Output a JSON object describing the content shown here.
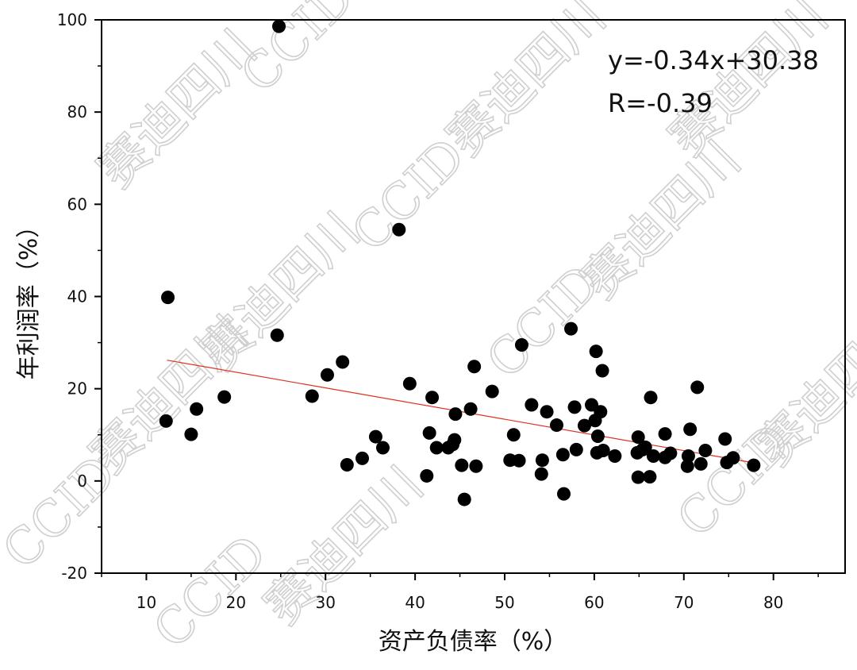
{
  "chart_data": {
    "type": "scatter",
    "xlabel": "资产负债率（%）",
    "ylabel": "年利润率（%）",
    "xlim": [
      5,
      88
    ],
    "ylim": [
      -20,
      100
    ],
    "x_ticks": [
      10,
      20,
      30,
      40,
      50,
      60,
      70,
      80
    ],
    "y_ticks": [
      -20,
      0,
      20,
      40,
      60,
      80,
      100
    ],
    "grid": false,
    "marker_color": "#000000",
    "trendline": {
      "color": "#e03020",
      "x_start": 12.3,
      "x_end": 77.8
    },
    "annotations": [
      "y=-0.34x+30.38",
      "R=-0.39"
    ],
    "watermarks": [
      "赛迪四川",
      "CCID"
    ],
    "points": [
      {
        "x": 24.8,
        "y": 98.6
      },
      {
        "x": 38.2,
        "y": 54.5
      },
      {
        "x": 12.4,
        "y": 39.8
      },
      {
        "x": 24.6,
        "y": 31.6
      },
      {
        "x": 12.2,
        "y": 13.0
      },
      {
        "x": 15.0,
        "y": 10.1
      },
      {
        "x": 15.6,
        "y": 15.6
      },
      {
        "x": 18.7,
        "y": 18.2
      },
      {
        "x": 28.5,
        "y": 18.4
      },
      {
        "x": 30.2,
        "y": 23.0
      },
      {
        "x": 31.9,
        "y": 25.8
      },
      {
        "x": 32.4,
        "y": 3.5
      },
      {
        "x": 34.1,
        "y": 4.9
      },
      {
        "x": 35.6,
        "y": 9.6
      },
      {
        "x": 36.4,
        "y": 7.2
      },
      {
        "x": 39.4,
        "y": 21.1
      },
      {
        "x": 41.3,
        "y": 1.1
      },
      {
        "x": 41.6,
        "y": 10.4
      },
      {
        "x": 41.9,
        "y": 18.1
      },
      {
        "x": 42.4,
        "y": 7.2
      },
      {
        "x": 43.7,
        "y": 7.2
      },
      {
        "x": 44.2,
        "y": 7.9
      },
      {
        "x": 44.4,
        "y": 8.9
      },
      {
        "x": 44.5,
        "y": 14.5
      },
      {
        "x": 45.2,
        "y": 3.4
      },
      {
        "x": 45.5,
        "y": -4.0
      },
      {
        "x": 46.2,
        "y": 15.6
      },
      {
        "x": 46.6,
        "y": 24.8
      },
      {
        "x": 46.8,
        "y": 3.2
      },
      {
        "x": 48.6,
        "y": 19.4
      },
      {
        "x": 50.6,
        "y": 4.5
      },
      {
        "x": 51.0,
        "y": 10.0
      },
      {
        "x": 51.6,
        "y": 4.4
      },
      {
        "x": 51.9,
        "y": 29.5
      },
      {
        "x": 53.0,
        "y": 16.5
      },
      {
        "x": 54.1,
        "y": 1.5
      },
      {
        "x": 54.2,
        "y": 4.5
      },
      {
        "x": 54.7,
        "y": 15.0
      },
      {
        "x": 55.8,
        "y": 12.1
      },
      {
        "x": 56.5,
        "y": 5.7
      },
      {
        "x": 56.6,
        "y": -2.8
      },
      {
        "x": 57.4,
        "y": 33.0
      },
      {
        "x": 57.8,
        "y": 16.0
      },
      {
        "x": 58.0,
        "y": 6.8
      },
      {
        "x": 58.9,
        "y": 12.0
      },
      {
        "x": 59.7,
        "y": 16.5
      },
      {
        "x": 60.1,
        "y": 13.1
      },
      {
        "x": 60.2,
        "y": 28.1
      },
      {
        "x": 60.3,
        "y": 6.1
      },
      {
        "x": 60.4,
        "y": 9.7
      },
      {
        "x": 60.7,
        "y": 15.0
      },
      {
        "x": 60.9,
        "y": 23.9
      },
      {
        "x": 61.0,
        "y": 6.6
      },
      {
        "x": 62.3,
        "y": 5.4
      },
      {
        "x": 64.8,
        "y": 6.1
      },
      {
        "x": 64.9,
        "y": 0.8
      },
      {
        "x": 64.9,
        "y": 9.5
      },
      {
        "x": 65.4,
        "y": 6.8
      },
      {
        "x": 65.7,
        "y": 7.3
      },
      {
        "x": 66.2,
        "y": 0.9
      },
      {
        "x": 66.3,
        "y": 18.1
      },
      {
        "x": 66.6,
        "y": 5.4
      },
      {
        "x": 67.9,
        "y": 10.2
      },
      {
        "x": 67.9,
        "y": 5.1
      },
      {
        "x": 68.5,
        "y": 6.0
      },
      {
        "x": 70.4,
        "y": 3.2
      },
      {
        "x": 70.5,
        "y": 5.4
      },
      {
        "x": 70.7,
        "y": 11.2
      },
      {
        "x": 71.5,
        "y": 20.3
      },
      {
        "x": 71.9,
        "y": 3.7
      },
      {
        "x": 72.4,
        "y": 6.6
      },
      {
        "x": 74.6,
        "y": 9.1
      },
      {
        "x": 74.8,
        "y": 4.0
      },
      {
        "x": 75.5,
        "y": 5.0
      },
      {
        "x": 77.8,
        "y": 3.4
      }
    ]
  }
}
